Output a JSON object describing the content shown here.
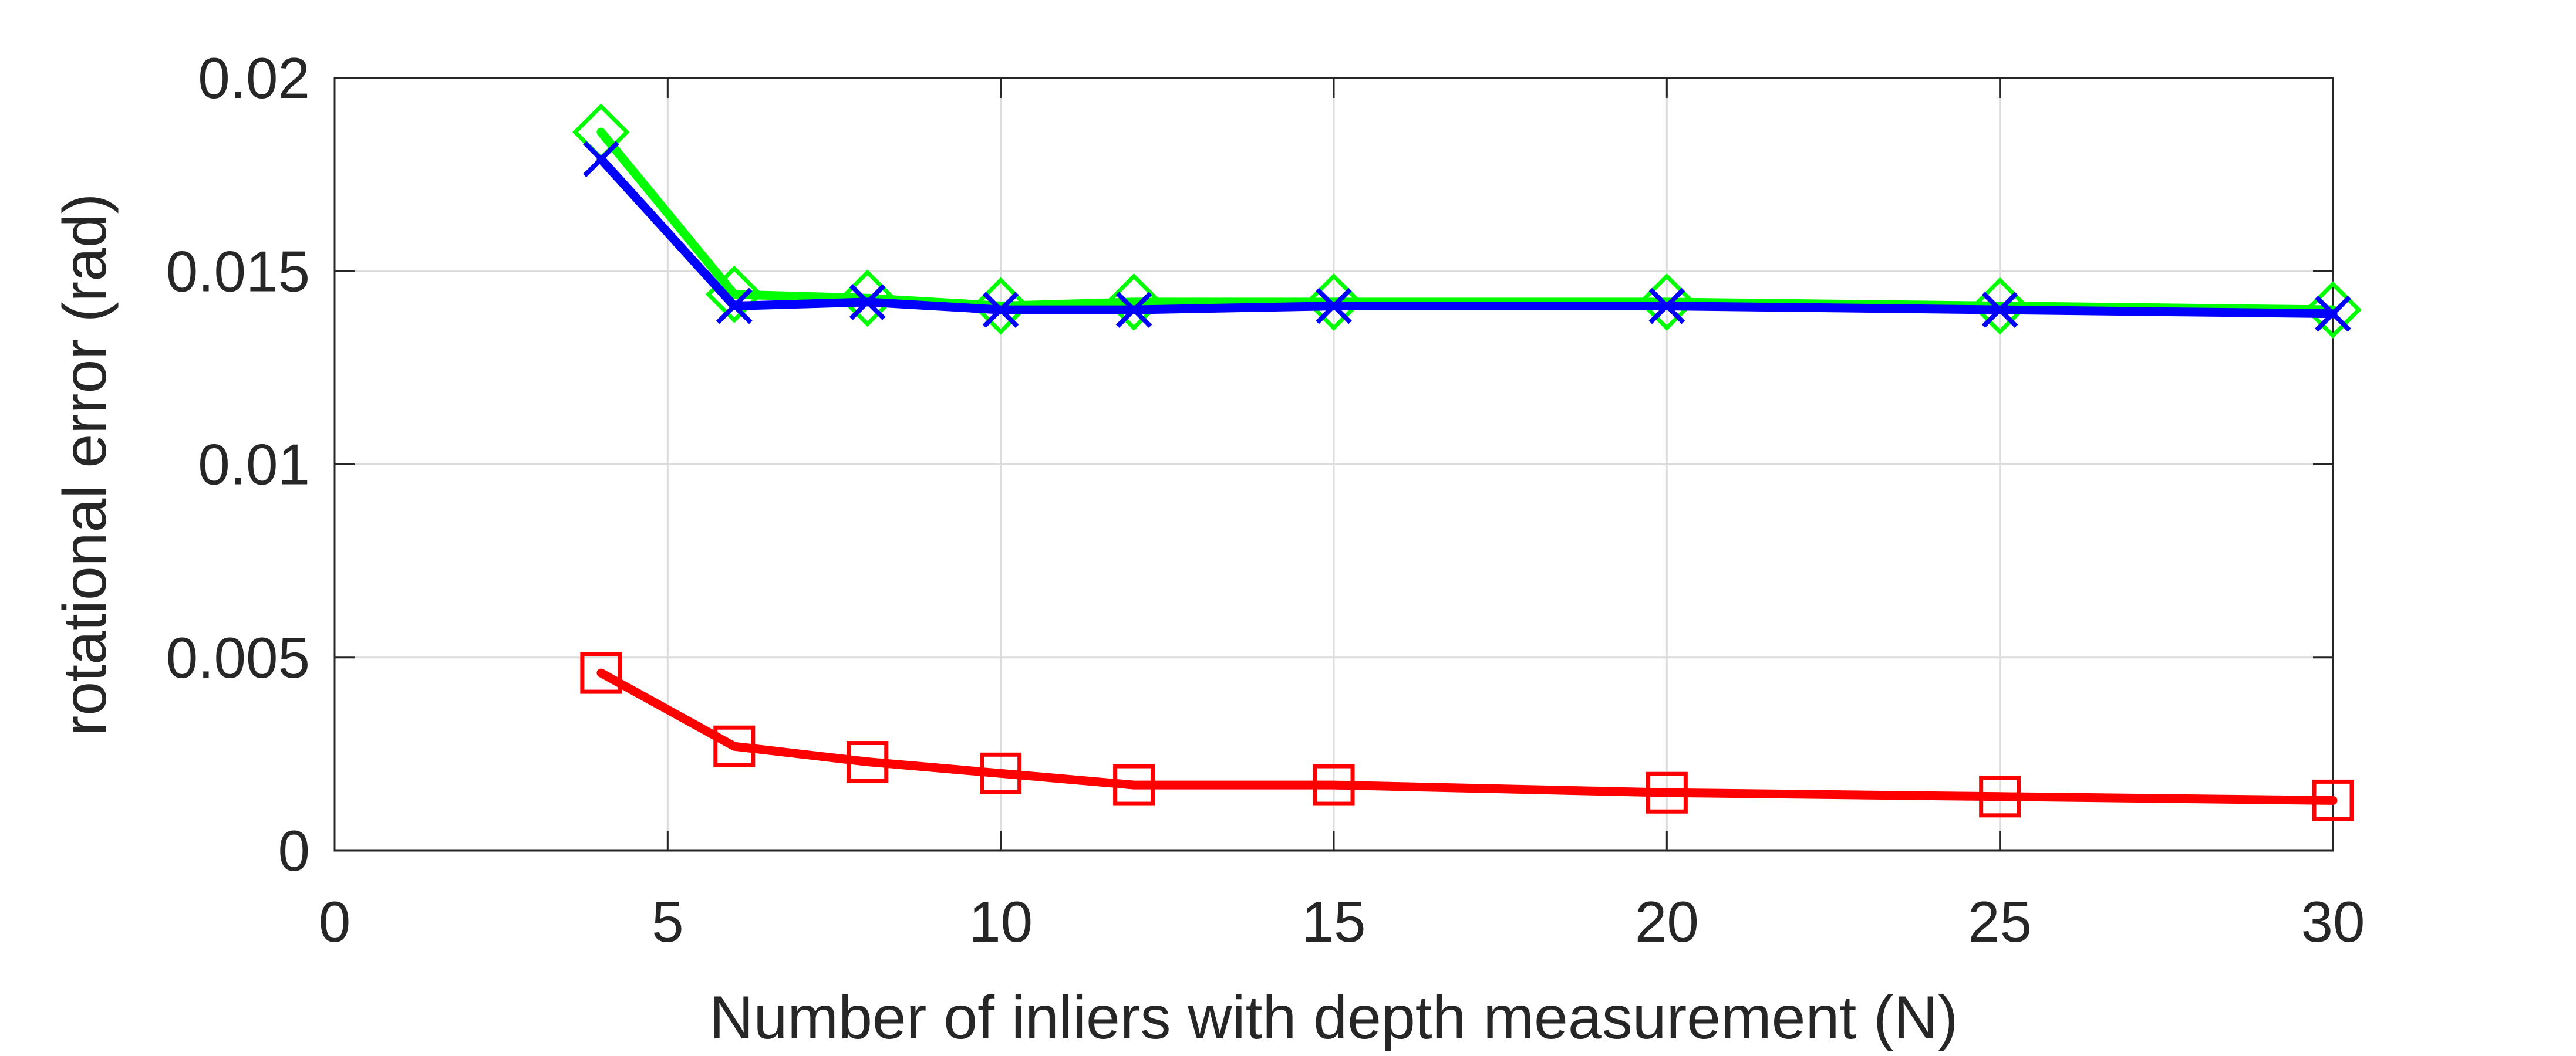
{
  "chart_data": {
    "type": "line",
    "title": "",
    "xlabel": "Number of inliers with depth measurement (N)",
    "ylabel": "rotational error (rad)",
    "xlim": [
      0,
      30
    ],
    "ylim": [
      0,
      0.02
    ],
    "xticks": [
      0,
      5,
      10,
      15,
      20,
      25,
      30
    ],
    "xtick_labels": [
      "0",
      "5",
      "10",
      "15",
      "20",
      "25",
      "30"
    ],
    "yticks": [
      0,
      0.005,
      0.01,
      0.015,
      0.02
    ],
    "ytick_labels": [
      "0",
      "0.005",
      "0.01",
      "0.015",
      "0.02"
    ],
    "grid": true,
    "legend": "none",
    "x": [
      4,
      6,
      8,
      10,
      12,
      15,
      20,
      25,
      30
    ],
    "series": [
      {
        "color": "#00ff00",
        "marker": "diamond",
        "values": [
          0.0186,
          0.0144,
          0.0143,
          0.0141,
          0.0142,
          0.0142,
          0.0142,
          0.0141,
          0.014
        ]
      },
      {
        "color": "#0000ff",
        "marker": "x",
        "values": [
          0.0179,
          0.0141,
          0.0142,
          0.014,
          0.014,
          0.0141,
          0.0141,
          0.014,
          0.0139
        ]
      },
      {
        "color": "#ff0000",
        "marker": "square",
        "values": [
          0.0046,
          0.0027,
          0.0023,
          0.002,
          0.0017,
          0.0017,
          0.0015,
          0.0014,
          0.0013
        ]
      }
    ]
  }
}
